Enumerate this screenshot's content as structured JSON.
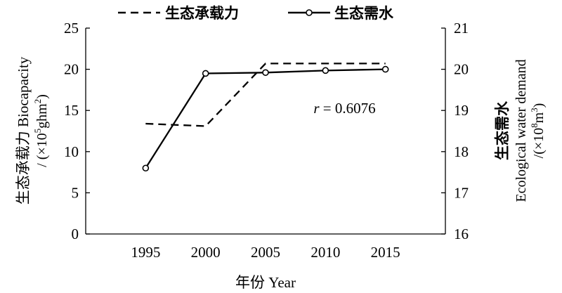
{
  "chart_data": {
    "type": "line",
    "x": [
      1995,
      2000,
      2005,
      2010,
      2015
    ],
    "xticks": [
      "1995",
      "2000",
      "2005",
      "2010",
      "2015"
    ],
    "xlim": [
      1990,
      2020
    ],
    "xlabel": "年份 Year",
    "ylabel_left": {
      "line1": "生态承载力 Biocapacity",
      "line2_prefix": "/ (×10",
      "line2_sup1": "5",
      "line2_mid": "ghm",
      "line2_sup2": "2",
      "line2_suffix": ")"
    },
    "ylabel_right": {
      "line1": "生态需水",
      "line2": "Ecological water demand",
      "line3_prefix": "/(×10",
      "line3_sup1": "8",
      "line3_mid": "m",
      "line3_sup2": "3",
      "line3_suffix": ")"
    },
    "ylim_left": [
      0,
      25
    ],
    "yticks_left": [
      "0",
      "5",
      "10",
      "15",
      "20",
      "25"
    ],
    "ylim_right": [
      16,
      21
    ],
    "yticks_right": [
      "16",
      "17",
      "18",
      "19",
      "20",
      "21"
    ],
    "series": [
      {
        "name": "生态承载力",
        "axis": "left",
        "style": "dashed",
        "x": [
          1995,
          2000,
          2005,
          2015
        ],
        "values": [
          13.4,
          13.1,
          20.7,
          20.7
        ]
      },
      {
        "name": "生态需水",
        "axis": "right",
        "style": "solid",
        "marker": "circle",
        "x": [
          1995,
          2000,
          2005,
          2010,
          2015
        ],
        "values": [
          17.6,
          19.9,
          19.92,
          19.97,
          20.0
        ]
      }
    ],
    "annotation": {
      "italic": "r",
      "text": " = 0.6076",
      "x": 2010,
      "y_left": 15
    },
    "legend_position": "top"
  }
}
